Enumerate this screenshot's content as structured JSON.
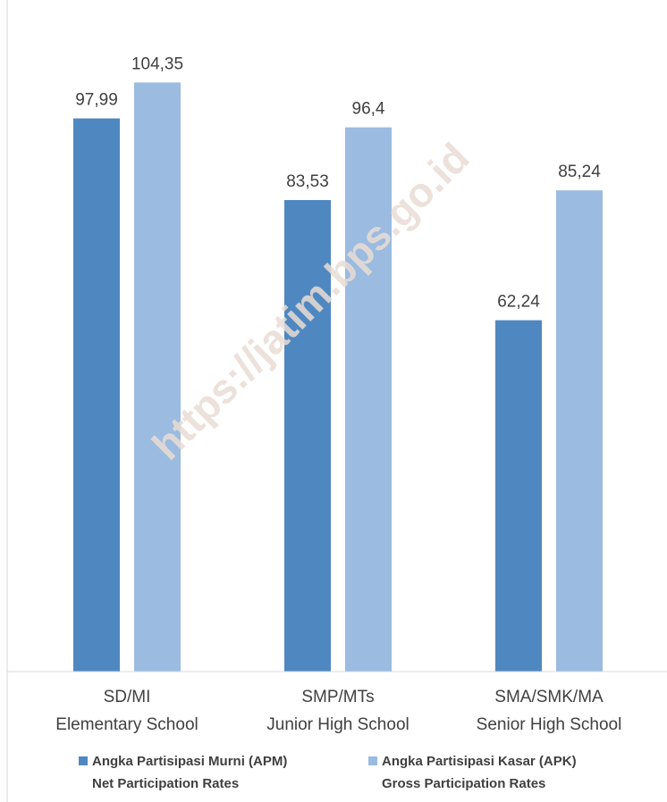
{
  "chart_data": {
    "type": "bar",
    "watermark": "https://jatim.bps.go.id",
    "categories": [
      [
        "SD/MI",
        "Elementary School"
      ],
      [
        "SMP/MTs",
        "Junior High School"
      ],
      [
        "SMA/SMK/MA",
        "Senior High School"
      ]
    ],
    "series": [
      {
        "name": [
          "Angka Partisipasi Murni (APM)",
          "Net Participation Rates"
        ],
        "color": "#4f88c0",
        "values": [
          97.99,
          83.53,
          62.24
        ],
        "value_labels": [
          "97,99",
          "83,53",
          "62,24"
        ]
      },
      {
        "name": [
          "Angka Partisipasi Kasar (APK)",
          "Gross Participation Rates"
        ],
        "color": "#9bbbe0",
        "values": [
          104.35,
          96.4,
          85.24
        ],
        "value_labels": [
          "104,35",
          "96,4",
          "85,24"
        ]
      }
    ],
    "ylim": [
      0,
      112
    ]
  }
}
